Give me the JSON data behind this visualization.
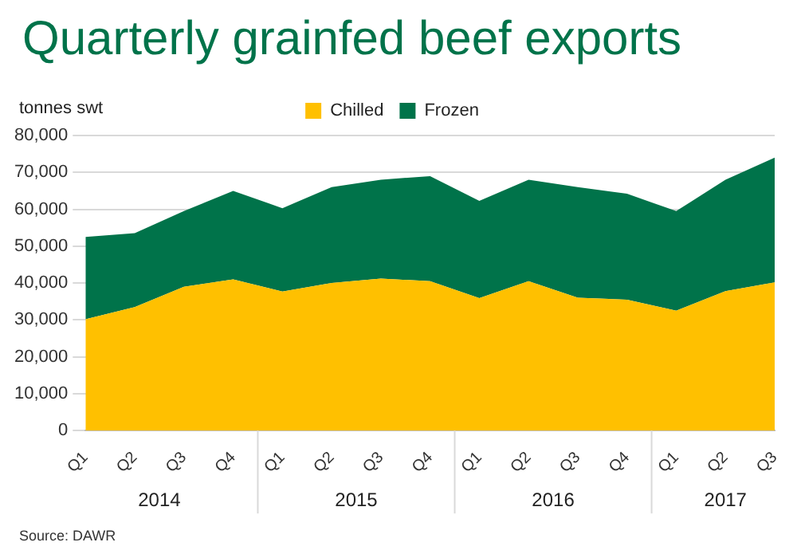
{
  "chart_data": {
    "type": "area",
    "title": "Quarterly grainfed beef exports",
    "ylabel": "tonnes swt",
    "categories": [
      "Q1",
      "Q2",
      "Q3",
      "Q4",
      "Q1",
      "Q2",
      "Q3",
      "Q4",
      "Q1",
      "Q2",
      "Q3",
      "Q4",
      "Q1",
      "Q2",
      "Q3"
    ],
    "series": [
      {
        "name": "Chilled",
        "color": "#ffc000",
        "values": [
          30200,
          33500,
          39000,
          41000,
          37700,
          40000,
          41200,
          40500,
          35900,
          40500,
          36000,
          35500,
          32500,
          37800,
          40200
        ]
      },
      {
        "name": "Frozen",
        "color": "#00734a",
        "values": [
          22300,
          20000,
          20500,
          24000,
          22600,
          26000,
          26800,
          28500,
          26400,
          27500,
          30000,
          28700,
          27000,
          30200,
          33800
        ]
      }
    ],
    "stacked": true,
    "ylim": [
      0,
      80000
    ],
    "yticks": [
      0,
      {
        "value": 10000,
        "label": "10,000"
      },
      {
        "value": 20000,
        "label": "20,000"
      },
      {
        "value": 30000,
        "label": "30,000"
      },
      {
        "value": 40000,
        "label": "40,000"
      },
      {
        "value": 50000,
        "label": "50,000"
      },
      {
        "value": 60000,
        "label": "60,000"
      },
      {
        "value": 70000,
        "label": "70,000"
      },
      {
        "value": 80000,
        "label": "80,000"
      }
    ],
    "grid": "y",
    "legend": "top",
    "marker": "none",
    "annotations": [
      "2014",
      "2015",
      "2016",
      "2017",
      "Source: DAWR"
    ]
  }
}
